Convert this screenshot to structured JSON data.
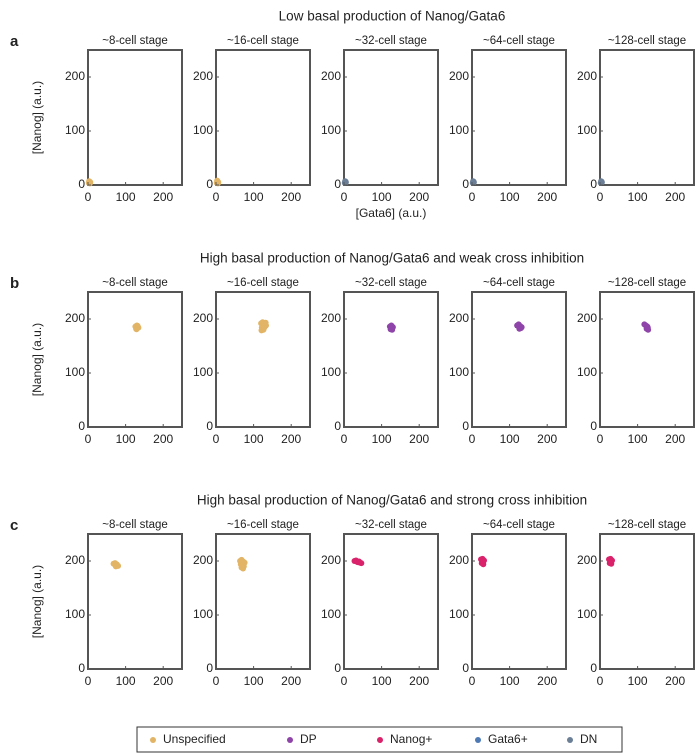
{
  "rows": [
    {
      "label": "a",
      "title": "Low basal production of Nanog/Gata6"
    },
    {
      "label": "b",
      "title": "High basal production of Nanog/Gata6 and weak cross inhibition"
    },
    {
      "label": "c",
      "title": "High basal production of Nanog/Gata6 and strong cross inhibition"
    }
  ],
  "legend": [
    {
      "name": "Unspecified",
      "color": "#e2b466"
    },
    {
      "name": "DP",
      "color": "#8e44a8"
    },
    {
      "name": "Nanog+",
      "color": "#d9226a"
    },
    {
      "name": "Gata6+",
      "color": "#4d7ab5"
    },
    {
      "name": "DN",
      "color": "#6b7f97"
    }
  ],
  "chart_data": [
    {
      "type": "scatter",
      "title": "~8-cell stage",
      "ylabel": "[Nanog] (a.u.)",
      "xlim": [
        0,
        250
      ],
      "ylim": [
        0,
        250
      ],
      "xticks": [
        0,
        100,
        200
      ],
      "yticks": [
        0,
        100,
        200
      ],
      "series": [
        {
          "color": "#e2b466",
          "x": [
            2,
            4,
            6,
            3,
            5
          ],
          "y": [
            4,
            6,
            5,
            7,
            3
          ]
        }
      ]
    },
    {
      "type": "scatter",
      "title": "~16-cell stage",
      "xlim": [
        0,
        250
      ],
      "ylim": [
        0,
        250
      ],
      "xticks": [
        0,
        100,
        200
      ],
      "yticks": [
        0,
        100,
        200
      ],
      "series": [
        {
          "color": "#e2b466",
          "x": [
            2,
            4,
            6,
            3,
            5
          ],
          "y": [
            4,
            7,
            5,
            8,
            3
          ]
        }
      ]
    },
    {
      "type": "scatter",
      "title": "~32-cell stage",
      "xlabel": "[Gata6] (a.u.)",
      "xlim": [
        0,
        250
      ],
      "ylim": [
        0,
        250
      ],
      "xticks": [
        0,
        100,
        200
      ],
      "yticks": [
        0,
        100,
        200
      ],
      "series": [
        {
          "color": "#6b7f97",
          "x": [
            2,
            4,
            5,
            3
          ],
          "y": [
            4,
            6,
            5,
            7
          ]
        }
      ]
    },
    {
      "type": "scatter",
      "title": "~64-cell stage",
      "xlim": [
        0,
        250
      ],
      "ylim": [
        0,
        250
      ],
      "xticks": [
        0,
        100,
        200
      ],
      "yticks": [
        0,
        100,
        200
      ],
      "series": [
        {
          "color": "#6b7f97",
          "x": [
            2,
            4,
            5,
            3
          ],
          "y": [
            4,
            6,
            5,
            7
          ]
        }
      ]
    },
    {
      "type": "scatter",
      "title": "~128-cell stage",
      "xlim": [
        0,
        250
      ],
      "ylim": [
        0,
        250
      ],
      "xticks": [
        0,
        100,
        200
      ],
      "yticks": [
        0,
        100,
        200
      ],
      "series": [
        {
          "color": "#6b7f97",
          "x": [
            2,
            4,
            5,
            3
          ],
          "y": [
            4,
            6,
            5,
            7
          ]
        }
      ]
    },
    {
      "type": "scatter",
      "title": "~8-cell stage",
      "ylabel": "[Nanog] (a.u.)",
      "xlim": [
        0,
        250
      ],
      "ylim": [
        0,
        250
      ],
      "xticks": [
        0,
        100,
        200
      ],
      "yticks": [
        0,
        100,
        200
      ],
      "series": [
        {
          "color": "#e2b466",
          "x": [
            126,
            130,
            134,
            128,
            132,
            129
          ],
          "y": [
            186,
            188,
            184,
            182,
            187,
            181
          ]
        }
      ]
    },
    {
      "type": "scatter",
      "title": "~16-cell stage",
      "xlim": [
        0,
        250
      ],
      "ylim": [
        0,
        250
      ],
      "xticks": [
        0,
        100,
        200
      ],
      "yticks": [
        0,
        100,
        200
      ],
      "series": [
        {
          "color": "#e2b466",
          "x": [
            120,
            124,
            128,
            132,
            122,
            130,
            126,
            133,
            121,
            127
          ],
          "y": [
            192,
            194,
            190,
            193,
            184,
            186,
            180,
            188,
            179,
            182
          ]
        }
      ]
    },
    {
      "type": "scatter",
      "title": "~32-cell stage",
      "xlim": [
        0,
        250
      ],
      "ylim": [
        0,
        250
      ],
      "xticks": [
        0,
        100,
        200
      ],
      "yticks": [
        0,
        100,
        200
      ],
      "series": [
        {
          "color": "#8e44a8",
          "x": [
            122,
            126,
            130,
            124,
            128,
            127
          ],
          "y": [
            186,
            188,
            185,
            181,
            180,
            183
          ]
        }
      ]
    },
    {
      "type": "scatter",
      "title": "~64-cell stage",
      "xlim": [
        0,
        250
      ],
      "ylim": [
        0,
        250
      ],
      "xticks": [
        0,
        100,
        200
      ],
      "yticks": [
        0,
        100,
        200
      ],
      "series": [
        {
          "color": "#8e44a8",
          "x": [
            120,
            124,
            128,
            132,
            126,
            130
          ],
          "y": [
            188,
            190,
            187,
            185,
            182,
            183
          ]
        }
      ]
    },
    {
      "type": "scatter",
      "title": "~128-cell stage",
      "xlim": [
        0,
        250
      ],
      "ylim": [
        0,
        250
      ],
      "xticks": [
        0,
        100,
        200
      ],
      "yticks": [
        0,
        100,
        200
      ],
      "series": [
        {
          "color": "#8e44a8",
          "x": [
            118,
            122,
            126,
            124,
            128,
            127
          ],
          "y": [
            190,
            188,
            186,
            182,
            180,
            184
          ]
        }
      ]
    },
    {
      "type": "scatter",
      "title": "~8-cell stage",
      "ylabel": "[Nanog] (a.u.)",
      "xlim": [
        0,
        250
      ],
      "ylim": [
        0,
        250
      ],
      "xticks": [
        0,
        100,
        200
      ],
      "yticks": [
        0,
        100,
        200
      ],
      "series": [
        {
          "color": "#e2b466",
          "x": [
            68,
            72,
            76,
            80,
            74,
            78
          ],
          "y": [
            195,
            196,
            194,
            191,
            190,
            192
          ]
        }
      ]
    },
    {
      "type": "scatter",
      "title": "~16-cell stage",
      "xlim": [
        0,
        250
      ],
      "ylim": [
        0,
        250
      ],
      "xticks": [
        0,
        100,
        200
      ],
      "yticks": [
        0,
        100,
        200
      ],
      "series": [
        {
          "color": "#e2b466",
          "x": [
            64,
            68,
            72,
            76,
            66,
            70,
            74,
            72,
            68
          ],
          "y": [
            200,
            202,
            199,
            197,
            194,
            192,
            190,
            186,
            188
          ]
        }
      ]
    },
    {
      "type": "scatter",
      "title": "~32-cell stage",
      "xlim": [
        0,
        250
      ],
      "ylim": [
        0,
        250
      ],
      "xticks": [
        0,
        100,
        200
      ],
      "yticks": [
        0,
        100,
        200
      ],
      "series": [
        {
          "color": "#d9226a",
          "x": [
            28,
            32,
            36,
            42,
            46,
            40
          ],
          "y": [
            200,
            201,
            198,
            197,
            196,
            199
          ]
        }
      ]
    },
    {
      "type": "scatter",
      "title": "~64-cell stage",
      "xlim": [
        0,
        250
      ],
      "ylim": [
        0,
        250
      ],
      "xticks": [
        0,
        100,
        200
      ],
      "yticks": [
        0,
        100,
        200
      ],
      "series": [
        {
          "color": "#d9226a",
          "x": [
            24,
            28,
            32,
            26,
            30,
            29
          ],
          "y": [
            203,
            204,
            201,
            196,
            194,
            199
          ]
        }
      ]
    },
    {
      "type": "scatter",
      "title": "~128-cell stage",
      "xlim": [
        0,
        250
      ],
      "ylim": [
        0,
        250
      ],
      "xticks": [
        0,
        100,
        200
      ],
      "yticks": [
        0,
        100,
        200
      ],
      "series": [
        {
          "color": "#d9226a",
          "x": [
            24,
            28,
            32,
            26,
            30,
            29
          ],
          "y": [
            203,
            204,
            201,
            196,
            195,
            199
          ]
        }
      ]
    }
  ]
}
